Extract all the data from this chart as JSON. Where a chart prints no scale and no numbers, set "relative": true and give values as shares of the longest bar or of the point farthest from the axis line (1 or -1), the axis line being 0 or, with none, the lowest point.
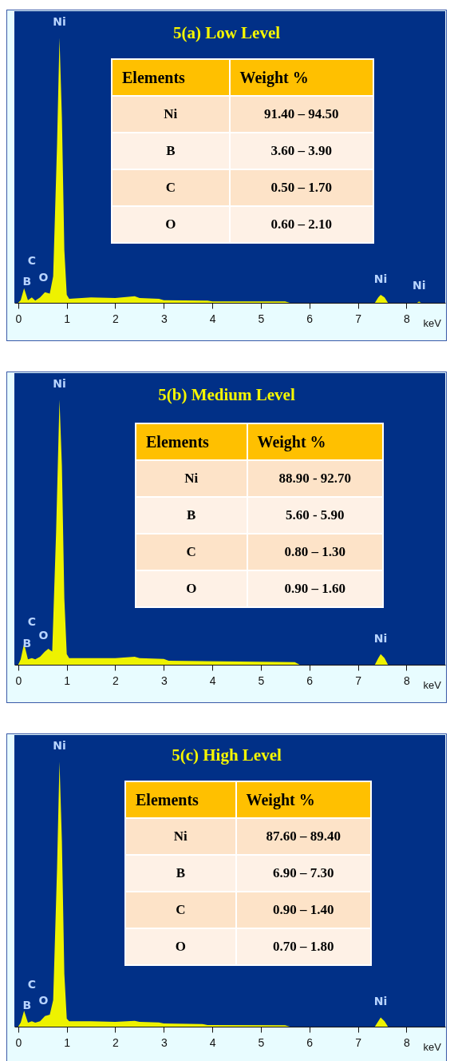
{
  "chart_data": [
    {
      "type": "area",
      "title": "5(a) Low Level",
      "xlabel": "keV",
      "relative": true,
      "color": "#eef200",
      "xlim": [
        -0.08,
        8.8
      ],
      "xticks": [
        0,
        1,
        2,
        3,
        4,
        5,
        6,
        7,
        8
      ],
      "x": [
        0,
        0.05,
        0.12,
        0.2,
        0.28,
        0.35,
        0.45,
        0.55,
        0.65,
        0.72,
        0.8,
        0.85,
        0.9,
        0.95,
        1.0,
        1.05,
        1.5,
        2.0,
        2.4,
        2.5,
        2.9,
        3.0,
        3.9,
        4.0,
        5.5,
        5.6,
        7.35,
        7.42,
        7.47,
        7.55,
        7.62,
        8.22,
        8.26,
        8.3,
        8.8
      ],
      "values": [
        0,
        0.01,
        0.055,
        0.01,
        0.02,
        0.008,
        0.02,
        0.04,
        0.035,
        0.1,
        0.6,
        1,
        0.7,
        0.2,
        0.03,
        0.015,
        0.02,
        0.018,
        0.025,
        0.018,
        0.015,
        0.01,
        0.008,
        0.005,
        0.005,
        0,
        0,
        0.02,
        0.03,
        0.02,
        0,
        0,
        0.005,
        0,
        0
      ],
      "annotations": [
        "Elements",
        "Weight %",
        "Ni",
        "91.40 – 94.50",
        "B",
        "3.60 – 3.90",
        "C",
        "0.50 – 1.70",
        "O",
        "0.60 – 2.10",
        {
          "text": "Ni",
          "x": 0.85,
          "y": 1
        },
        {
          "text": "B",
          "x": 0.18,
          "y": 0.02
        },
        {
          "text": "C",
          "x": 0.28,
          "y": 0.02
        },
        {
          "text": "O",
          "x": 0.52,
          "y": 0.035
        },
        {
          "text": "Ni",
          "x": 7.47,
          "y": 0.03
        },
        {
          "text": "Ni",
          "x": 8.26,
          "y": 0.005
        }
      ]
    },
    {
      "type": "area",
      "title": "5(b) Medium Level",
      "xlabel": "keV",
      "relative": true,
      "color": "#eef200",
      "xlim": [
        -0.08,
        8.8
      ],
      "xticks": [
        0,
        1,
        2,
        3,
        4,
        5,
        6,
        7,
        8
      ],
      "x": [
        0,
        0.05,
        0.12,
        0.2,
        0.28,
        0.35,
        0.45,
        0.55,
        0.62,
        0.7,
        0.78,
        0.85,
        0.9,
        0.95,
        1.0,
        1.05,
        1.5,
        2.0,
        2.4,
        2.5,
        3.0,
        3.1,
        5.7,
        5.8,
        7.35,
        7.42,
        7.47,
        7.55,
        7.62,
        8.8
      ],
      "values": [
        0,
        0.02,
        0.08,
        0.02,
        0.025,
        0.02,
        0.03,
        0.05,
        0.06,
        0.05,
        0.5,
        1,
        0.75,
        0.25,
        0.04,
        0.025,
        0.025,
        0.025,
        0.03,
        0.025,
        0.022,
        0.015,
        0.01,
        0,
        0,
        0.025,
        0.04,
        0.025,
        0,
        0
      ],
      "annotations": [
        "Elements",
        "Weight %",
        "Ni",
        "88.90 - 92.70",
        "B",
        "5.60 - 5.90",
        "C",
        "0.80 – 1.30",
        "O",
        "0.90 – 1.60",
        {
          "text": "Ni",
          "x": 0.85,
          "y": 1
        },
        {
          "text": "B",
          "x": 0.18,
          "y": 0.02
        },
        {
          "text": "C",
          "x": 0.28,
          "y": 0.025
        },
        {
          "text": "O",
          "x": 0.52,
          "y": 0.05
        },
        {
          "text": "Ni",
          "x": 7.47,
          "y": 0.04
        }
      ]
    },
    {
      "type": "area",
      "title": "5(c) High Level",
      "xlabel": "keV",
      "relative": true,
      "color": "#eef200",
      "xlim": [
        -0.08,
        8.8
      ],
      "xticks": [
        0,
        1,
        2,
        3,
        4,
        5,
        6,
        7,
        8
      ],
      "x": [
        0,
        0.05,
        0.12,
        0.2,
        0.28,
        0.35,
        0.45,
        0.55,
        0.65,
        0.72,
        0.8,
        0.85,
        0.9,
        0.95,
        1.0,
        1.05,
        1.5,
        2.0,
        2.4,
        2.5,
        2.9,
        3.0,
        3.8,
        3.9,
        5.5,
        5.6,
        7.35,
        7.42,
        7.47,
        7.55,
        7.62,
        8.8
      ],
      "values": [
        0,
        0.015,
        0.06,
        0.015,
        0.02,
        0.015,
        0.02,
        0.04,
        0.045,
        0.1,
        0.6,
        1,
        0.7,
        0.2,
        0.03,
        0.02,
        0.02,
        0.018,
        0.022,
        0.018,
        0.016,
        0.012,
        0.01,
        0.006,
        0.005,
        0,
        0,
        0.02,
        0.035,
        0.02,
        0,
        0
      ],
      "annotations": [
        "Elements",
        "Weight %",
        "Ni",
        "87.60 – 89.40",
        "B",
        "6.90 – 7.30",
        "C",
        "0.90 – 1.40",
        "O",
        "0.70 – 1.80",
        {
          "text": "Ni",
          "x": 0.85,
          "y": 1
        },
        {
          "text": "B",
          "x": 0.18,
          "y": 0.02
        },
        {
          "text": "C",
          "x": 0.28,
          "y": 0.02
        },
        {
          "text": "O",
          "x": 0.52,
          "y": 0.04
        },
        {
          "text": "Ni",
          "x": 7.47,
          "y": 0.035
        }
      ]
    }
  ]
}
